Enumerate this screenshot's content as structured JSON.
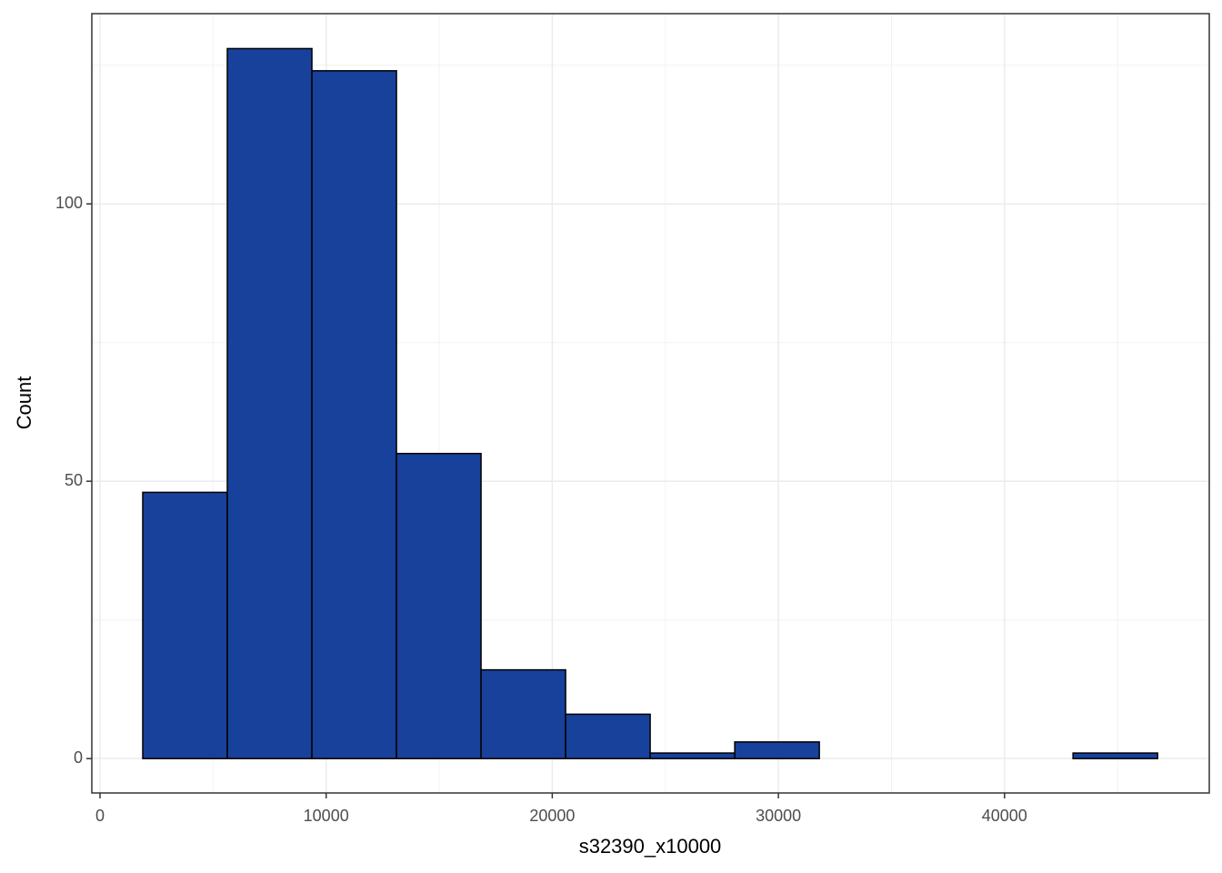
{
  "chart_data": {
    "type": "histogram",
    "x_label": "s32390_x10000",
    "y_label": "Count",
    "bins": [
      1890,
      5630,
      9370,
      13110,
      16850,
      20590,
      24330,
      28070,
      31810,
      35550,
      39290,
      43030,
      46770
    ],
    "values": [
      48,
      128,
      124,
      55,
      16,
      8,
      1,
      3,
      0,
      0,
      0,
      1
    ],
    "color": "#17419a",
    "edge_color": "#000000",
    "xlim": [
      -362,
      49055
    ],
    "xticks": [
      0,
      10000,
      20000,
      30000,
      40000
    ],
    "xminor": [
      5000,
      15000,
      25000,
      35000,
      45000
    ],
    "ylim": [
      -6.2,
      134.3
    ],
    "yticks": [
      0,
      50,
      100
    ],
    "yminor": [
      25,
      75,
      125
    ],
    "grid": true
  }
}
